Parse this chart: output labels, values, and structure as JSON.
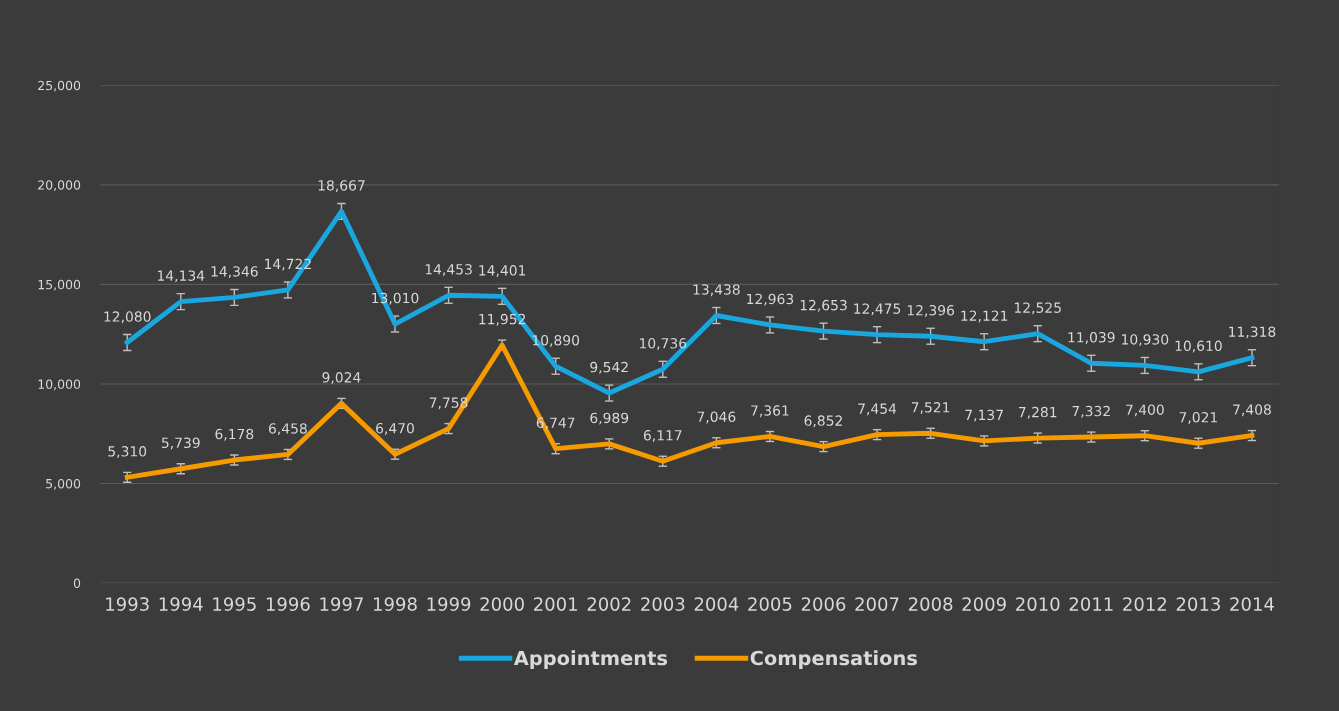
{
  "chart_data": {
    "type": "line",
    "categories": [
      "1993",
      "1994",
      "1995",
      "1996",
      "1997",
      "1998",
      "1999",
      "2000",
      "2001",
      "2002",
      "2003",
      "2004",
      "2005",
      "2006",
      "2007",
      "2008",
      "2009",
      "2010",
      "2011",
      "2012",
      "2013",
      "2014"
    ],
    "series": [
      {
        "name": "Appointments",
        "color": "#1aa7e0",
        "values": [
          12080,
          14134,
          14346,
          14722,
          18667,
          13010,
          14453,
          14401,
          10890,
          9542,
          10736,
          13438,
          12963,
          12653,
          12475,
          12396,
          12121,
          12525,
          11039,
          10930,
          10610,
          11318
        ],
        "value_labels": [
          "12,080",
          "14,134",
          "14,346",
          "14,722",
          "18,667",
          "13,010",
          "14,453",
          "14,401",
          "10,890",
          "9,542",
          "10,736",
          "13,438",
          "12,963",
          "12,653",
          "12,475",
          "12,396",
          "12,121",
          "12,525",
          "11,039",
          "10,930",
          "10,610",
          "11,318"
        ],
        "errors": [
          400,
          400,
          400,
          400,
          400,
          400,
          400,
          400,
          400,
          400,
          400,
          400,
          400,
          400,
          400,
          400,
          400,
          400,
          400,
          400,
          400,
          400
        ]
      },
      {
        "name": "Compensations",
        "color": "#f59b00",
        "values": [
          5310,
          5739,
          6178,
          6458,
          9024,
          6470,
          7758,
          11952,
          6747,
          6989,
          6117,
          7046,
          7361,
          6852,
          7454,
          7521,
          7137,
          7281,
          7332,
          7400,
          7021,
          7408
        ],
        "value_labels": [
          "5,310",
          "5,739",
          "6,178",
          "6,458",
          "9,024",
          "6,470",
          "7,758",
          "11,952",
          "6,747",
          "6,989",
          "6,117",
          "7,046",
          "7,361",
          "6,852",
          "7,454",
          "7,521",
          "7,137",
          "7,281",
          "7,332",
          "7,400",
          "7,021",
          "7,408"
        ],
        "errors": [
          250,
          250,
          250,
          250,
          250,
          250,
          250,
          250,
          250,
          250,
          250,
          250,
          250,
          250,
          250,
          250,
          250,
          250,
          250,
          250,
          250,
          250
        ]
      }
    ],
    "ylim": [
      0,
      25000
    ],
    "yticks": [
      0,
      {
        "value": 5000,
        "label": "5,000"
      },
      {
        "value": 10000,
        "label": "10,000"
      },
      {
        "value": 15000,
        "label": "15,000"
      },
      {
        "value": 20000,
        "label": "20,000"
      },
      {
        "value": 25000,
        "label": "25,000"
      }
    ],
    "grid": "y",
    "legend": "bottom",
    "marker": "none",
    "line_style": "solid"
  }
}
